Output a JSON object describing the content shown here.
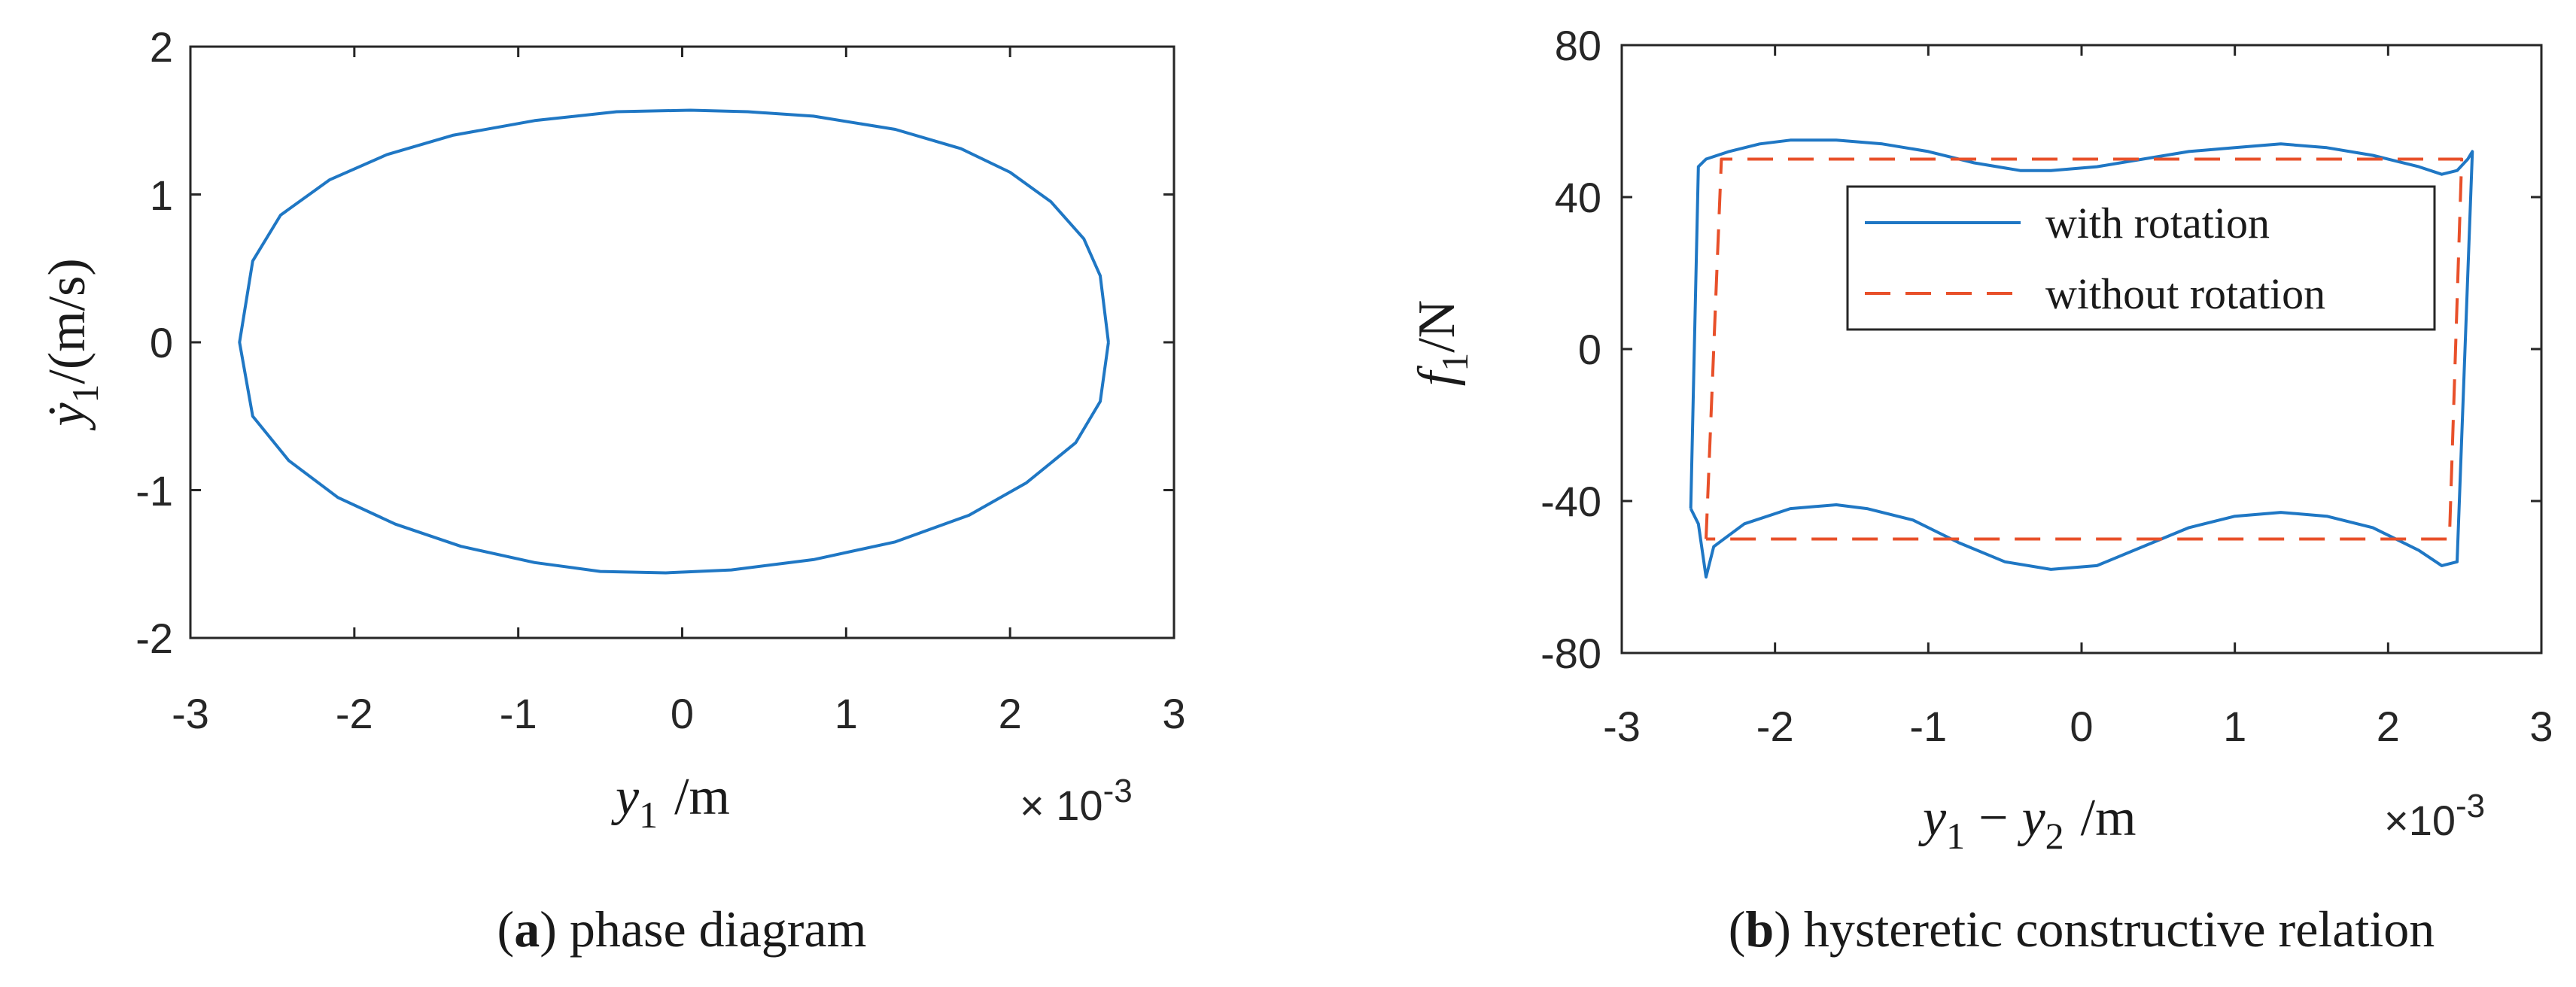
{
  "chart_data": [
    {
      "type": "line",
      "panel": "a",
      "caption_letter": "a",
      "caption_text": "phase diagram",
      "xlabel_var": "y",
      "xlabel_sub": "1",
      "xlabel_unit": "/m",
      "ylabel_var": "ẏ",
      "ylabel_sub": "1",
      "ylabel_unit": "/(m/s)",
      "x_multiplier": "× 10",
      "x_multiplier_exp": "-3",
      "xlim": [
        -3,
        3
      ],
      "ylim": [
        -2,
        2
      ],
      "xticks": [
        "-3",
        "-2",
        "-1",
        "0",
        "1",
        "2",
        "3"
      ],
      "yticks": [
        "-2",
        "-1",
        "0",
        "1",
        "2"
      ],
      "series": [
        {
          "color": "#1f77c4",
          "style": "solid",
          "x": [
            2.6,
            2.55,
            2.45,
            2.25,
            2.0,
            1.7,
            1.3,
            0.8,
            0.4,
            0.05,
            -0.4,
            -0.9,
            -1.4,
            -1.8,
            -2.15,
            -2.45,
            -2.62,
            -2.7,
            -2.62,
            -2.4,
            -2.1,
            -1.75,
            -1.35,
            -0.9,
            -0.5,
            -0.1,
            0.3,
            0.8,
            1.3,
            1.75,
            2.1,
            2.4,
            2.55,
            2.6
          ],
          "y": [
            0.0,
            0.45,
            0.7,
            0.95,
            1.15,
            1.31,
            1.44,
            1.53,
            1.56,
            1.57,
            1.56,
            1.5,
            1.4,
            1.27,
            1.1,
            0.86,
            0.55,
            0.0,
            -0.5,
            -0.8,
            -1.05,
            -1.23,
            -1.38,
            -1.49,
            -1.55,
            -1.56,
            -1.54,
            -1.47,
            -1.35,
            -1.17,
            -0.95,
            -0.68,
            -0.4,
            0.0
          ]
        }
      ]
    },
    {
      "type": "line",
      "panel": "b",
      "caption_letter": "b",
      "caption_text": "hysteretic constructive relation",
      "xlabel_var1": "y",
      "xlabel_sub1": "1",
      "xlabel_minus": "−",
      "xlabel_var2": "y",
      "xlabel_sub2": "2",
      "xlabel_unit": "/m",
      "ylabel_var": "f",
      "ylabel_sub": "1",
      "ylabel_unit": "/N",
      "x_multiplier": "×10",
      "x_multiplier_exp": "-3",
      "xlim": [
        -3,
        3
      ],
      "ylim": [
        -80,
        80
      ],
      "xticks": [
        "-3",
        "-2",
        "-1",
        "0",
        "1",
        "2",
        "3"
      ],
      "yticks": [
        "-80",
        "-40",
        "0",
        "40",
        "80"
      ],
      "legend": {
        "position": "inside-upper-right"
      },
      "series": [
        {
          "name": "with rotation",
          "color": "#1f77c4",
          "style": "solid",
          "x": [
            -2.55,
            -2.5,
            -2.45,
            -2.3,
            -2.1,
            -1.9,
            -1.6,
            -1.3,
            -1.0,
            -0.7,
            -0.4,
            -0.2,
            0.1,
            0.4,
            0.7,
            1.0,
            1.3,
            1.6,
            1.9,
            2.2,
            2.35,
            2.45,
            2.52,
            2.55,
            2.45,
            2.35,
            2.2,
            1.9,
            1.6,
            1.3,
            1.0,
            0.7,
            0.4,
            0.1,
            -0.2,
            -0.5,
            -0.8,
            -1.1,
            -1.4,
            -1.6,
            -1.9,
            -2.2,
            -2.4,
            -2.45,
            -2.5,
            -2.55
          ],
          "y": [
            -42,
            48,
            50,
            52,
            54,
            55,
            55,
            54,
            52,
            49,
            47,
            47,
            48,
            50,
            52,
            53,
            54,
            53,
            51,
            48,
            46,
            47,
            50,
            52,
            -56,
            -57,
            -53,
            -47,
            -44,
            -43,
            -44,
            -47,
            -52,
            -57,
            -58,
            -56,
            -51,
            -45,
            -42,
            -41,
            -42,
            -46,
            -52,
            -60,
            -46,
            -42
          ]
        },
        {
          "name": "without rotation",
          "color": "#e8502a",
          "style": "dashed",
          "x": [
            -2.45,
            -2.35,
            2.48,
            2.4,
            -2.45
          ],
          "y": [
            -50,
            50,
            50,
            -50,
            -50
          ]
        }
      ]
    }
  ]
}
